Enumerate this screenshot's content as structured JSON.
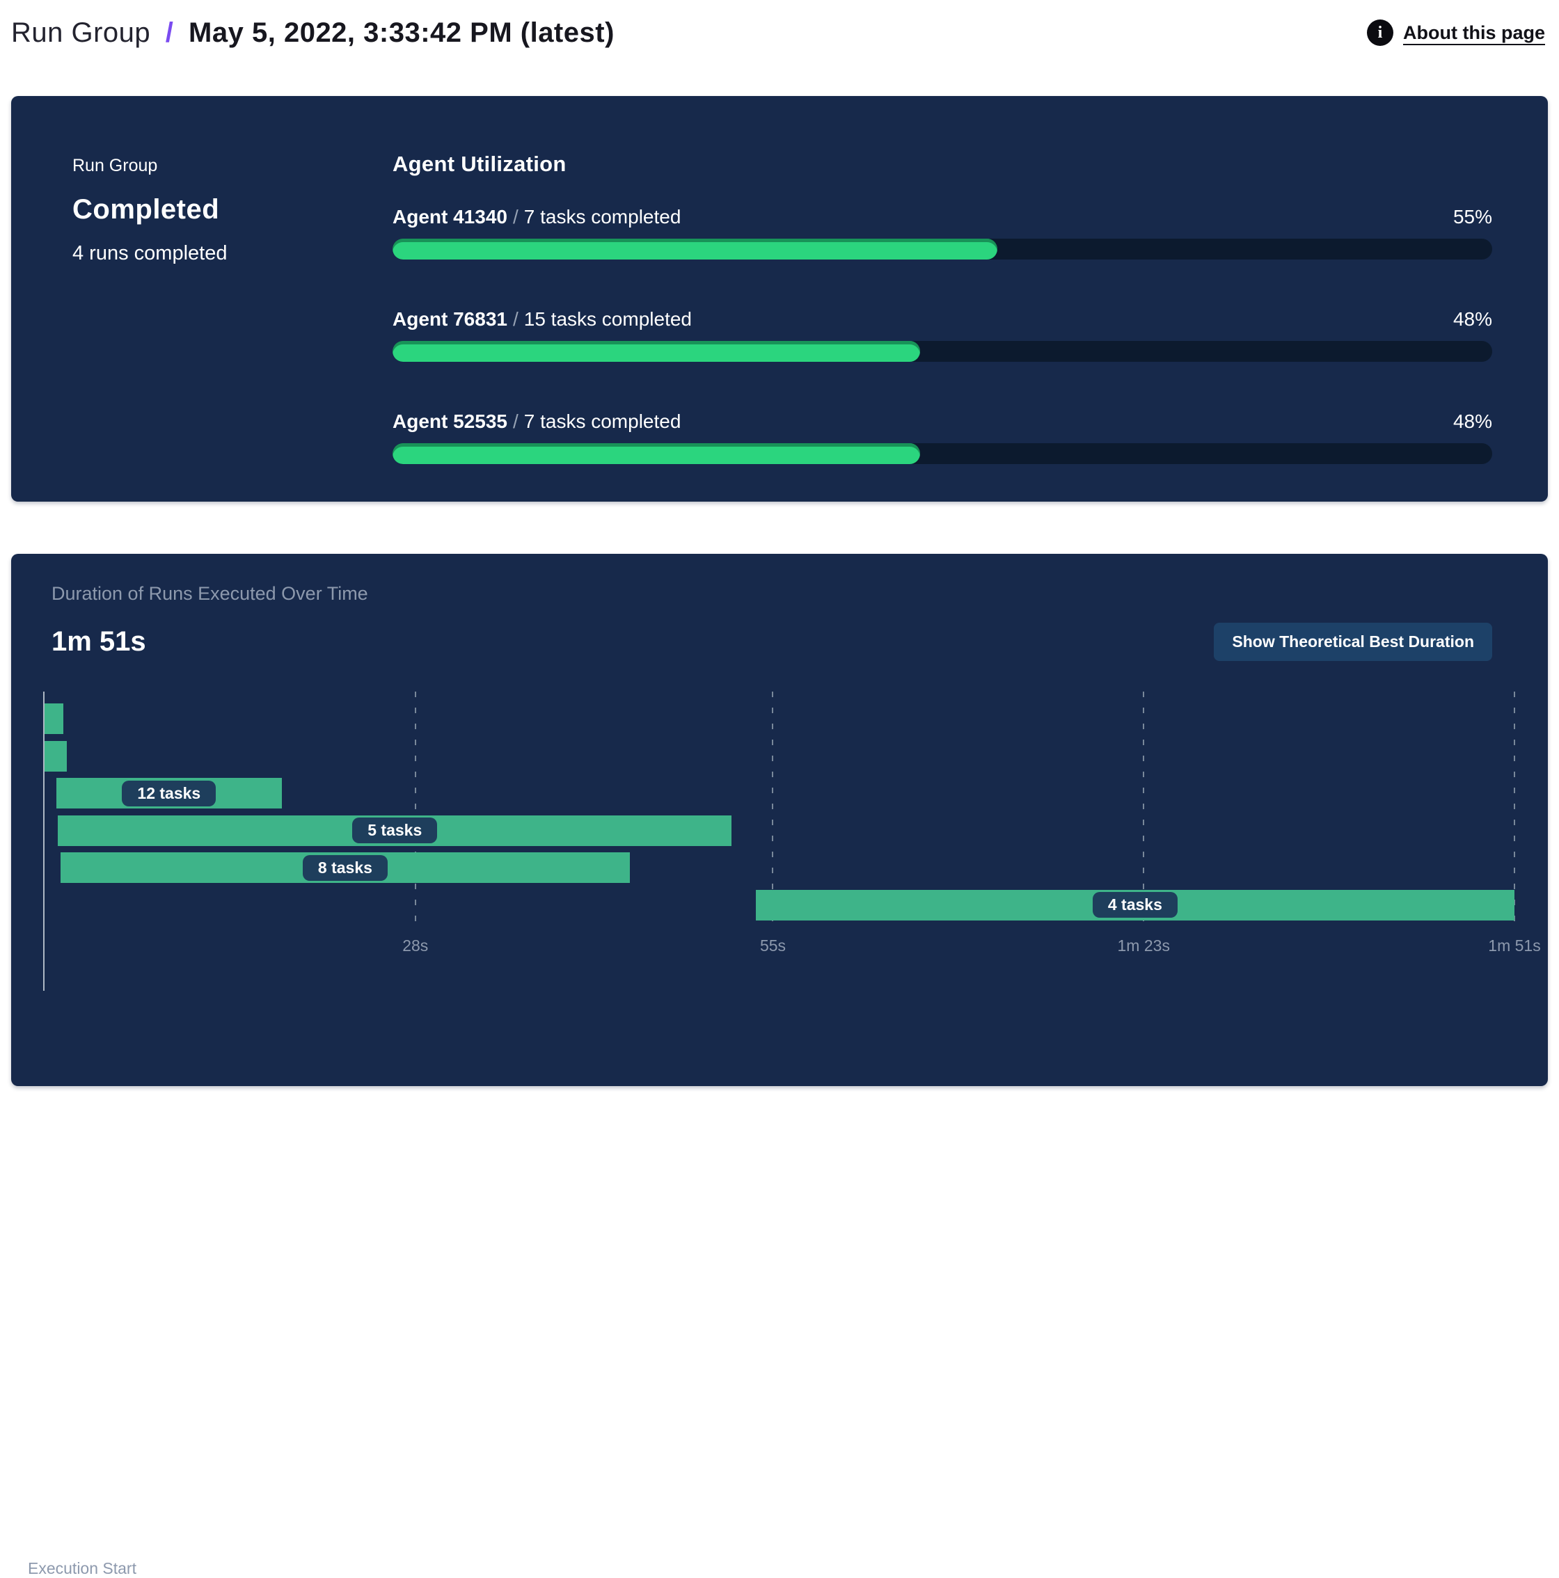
{
  "header": {
    "breadcrumb_root": "Run Group",
    "breadcrumb_separator": "/",
    "breadcrumb_current": "May 5, 2022, 3:33:42 PM (latest)",
    "info_icon_glyph": "i",
    "about_link": "About this page"
  },
  "summary_panel": {
    "label": "Run Group",
    "status": "Completed",
    "runs_completed": "4 runs completed",
    "utilization": {
      "title": "Agent Utilization",
      "agents": [
        {
          "name": "Agent 41340",
          "separator": "/",
          "detail": "7 tasks completed",
          "percent_label": "55%",
          "percent_value": 55
        },
        {
          "name": "Agent 76831",
          "separator": "/",
          "detail": "15 tasks completed",
          "percent_label": "48%",
          "percent_value": 48
        },
        {
          "name": "Agent 52535",
          "separator": "/",
          "detail": "7 tasks completed",
          "percent_label": "48%",
          "percent_value": 48
        }
      ]
    }
  },
  "duration_panel": {
    "subtitle": "Duration of Runs Executed Over Time",
    "total_duration": "1m 51s",
    "button_label": "Show Theoretical Best Duration",
    "execution_start_label": "Execution Start"
  },
  "chart_data": {
    "type": "gantt",
    "title": "Duration of Runs Executed Over Time",
    "x_unit": "seconds",
    "x_range": [
      0,
      111
    ],
    "grid": "dashed-vertical",
    "ticks": [
      {
        "t": 28,
        "label": "28s"
      },
      {
        "t": 55,
        "label": "55s"
      },
      {
        "t": 83,
        "label": "1m 23s"
      },
      {
        "t": 111,
        "label": "1m 51s"
      }
    ],
    "bars": [
      {
        "row": 0,
        "start": 0,
        "end": 1.4,
        "label": ""
      },
      {
        "row": 1,
        "start": 0,
        "end": 1.7,
        "label": ""
      },
      {
        "row": 2,
        "start": 0.9,
        "end": 17.9,
        "label": "12 tasks"
      },
      {
        "row": 3,
        "start": 1.0,
        "end": 51.9,
        "label": "5 tasks"
      },
      {
        "row": 4,
        "start": 1.2,
        "end": 44.2,
        "label": "8 tasks"
      },
      {
        "row": 5,
        "start": 53.7,
        "end": 111,
        "label": "4 tasks"
      }
    ]
  },
  "colors": {
    "panel_bg": "#17294b",
    "progress_fill": "#2bd57e",
    "progress_track": "#0c1a2e",
    "gantt_bar": "#3eb489",
    "badge_bg": "#1e3e5c",
    "button_bg": "#1d4168",
    "accent_purple": "#7a4bf0",
    "muted_text": "#8d99ad"
  }
}
